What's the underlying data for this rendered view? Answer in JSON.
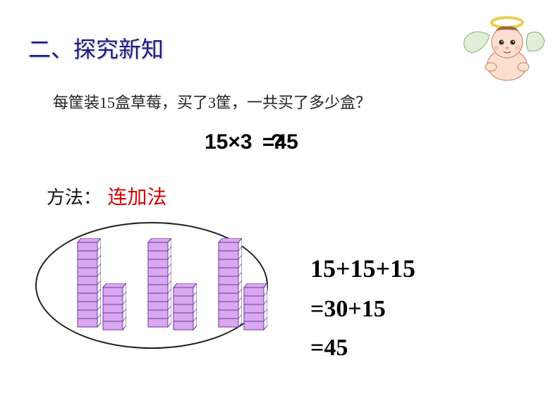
{
  "title": "二、探究新知",
  "problem": "每筐装15盒草莓，买了3筐，一共买了多少盒？",
  "main_equation": {
    "left": "15×3",
    "right": "=45",
    "overlay": "?"
  },
  "method": {
    "label": "方法：",
    "name": "连加法"
  },
  "cubes": {
    "groups": 3,
    "tall_blocks": 10,
    "short_blocks": 5,
    "face_fill": "#d9a8f0",
    "side_fill": "#ffffff",
    "stroke": "#6a3a9a"
  },
  "work": {
    "line1": "15+15+15",
    "line2": "=30+15",
    "line3": "=45"
  },
  "colors": {
    "title": "#1a1a8a",
    "method_name": "#d60000",
    "angel_skin": "#fbe0d0",
    "angel_wing": "#e0f0d8",
    "angel_halo": "#e8d050",
    "angel_hair": "#a06840"
  }
}
